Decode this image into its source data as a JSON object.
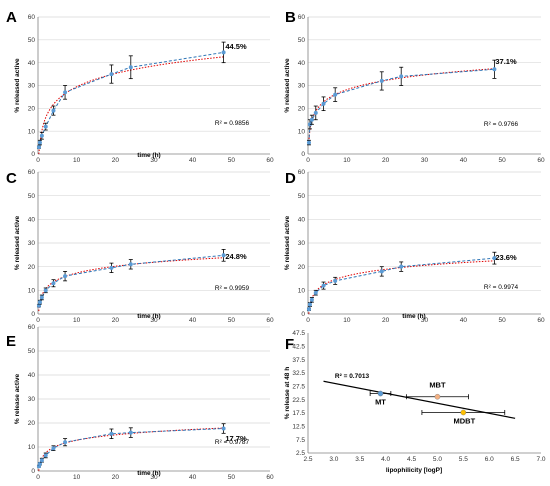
{
  "figure": {
    "panels": [
      {
        "letter": "A",
        "percent_label": "44.5%",
        "r2_label": "R² = 0.9856"
      },
      {
        "letter": "B",
        "percent_label": "37.1%",
        "r2_label": "R² = 0.9766"
      },
      {
        "letter": "C",
        "percent_label": "24.8%",
        "r2_label": "R² = 0.9959"
      },
      {
        "letter": "D",
        "percent_label": "23.6%",
        "r2_label": "R² = 0.9974"
      },
      {
        "letter": "E",
        "percent_label": "17.7%",
        "r2_label": "R² = 0.9787"
      },
      {
        "letter": "F",
        "r2_label": "R² = 0.7013"
      }
    ]
  },
  "colors": {
    "marker": "#5b9bd5",
    "series_line": "#2e75b6",
    "fit_line": "#e00000",
    "error_bar": "#000000",
    "grid": "#d9d9d9",
    "mt_marker": "#5b9bd5",
    "mbt_marker": "#f4b183",
    "mdbt_marker": "#ffc000"
  },
  "chart_data": [
    {
      "type": "scatter",
      "panel": "A",
      "xlabel": "time (h)",
      "ylabel": "% released active",
      "xlim": [
        0,
        60
      ],
      "ylim": [
        0,
        60
      ],
      "x_ticks": [
        0,
        10,
        20,
        30,
        40,
        50,
        60
      ],
      "y_ticks": [
        0,
        10,
        20,
        30,
        40,
        50,
        60
      ],
      "grid": true,
      "x": [
        0.25,
        0.5,
        1,
        2,
        4,
        7,
        19,
        24,
        48
      ],
      "y": [
        3,
        5,
        8,
        12,
        19,
        27,
        35,
        38,
        44.5
      ],
      "error": [
        0.5,
        1,
        1.5,
        1.5,
        2,
        3,
        4,
        5,
        4.5
      ],
      "annotation": "44.5%",
      "r_squared": "R² = 0.9856"
    },
    {
      "type": "scatter",
      "panel": "B",
      "xlabel": "",
      "ylabel": "% released active",
      "xlim": [
        0,
        60
      ],
      "ylim": [
        0,
        60
      ],
      "x_ticks": [
        0,
        10,
        20,
        30,
        40,
        50,
        60
      ],
      "y_ticks": [
        0,
        10,
        20,
        30,
        40,
        50,
        60
      ],
      "grid": true,
      "x": [
        0.25,
        0.5,
        1,
        2,
        4,
        7,
        19,
        24,
        48
      ],
      "y": [
        5,
        13,
        15,
        18,
        22,
        26,
        32,
        34,
        37.1
      ],
      "error": [
        1,
        2,
        2,
        3,
        3,
        3,
        4,
        4,
        4
      ],
      "annotation": "37.1%",
      "r_squared": "R² = 0.9766"
    },
    {
      "type": "scatter",
      "panel": "C",
      "xlabel": "time (h)",
      "ylabel": "% released active",
      "xlim": [
        0,
        60
      ],
      "ylim": [
        0,
        60
      ],
      "x_ticks": [
        0,
        10,
        20,
        30,
        40,
        50,
        60
      ],
      "y_ticks": [
        0,
        10,
        20,
        30,
        40,
        50,
        60
      ],
      "grid": true,
      "x": [
        0.25,
        0.5,
        1,
        2,
        4,
        7,
        19,
        24,
        48
      ],
      "y": [
        3.5,
        5,
        7,
        10,
        13,
        16,
        19.5,
        21,
        24.8
      ],
      "error": [
        0.5,
        0.8,
        1,
        1,
        1.5,
        2,
        2,
        2,
        2.5
      ],
      "annotation": "24.8%",
      "r_squared": "R² = 0.9959"
    },
    {
      "type": "scatter",
      "panel": "D",
      "xlabel": "time (h)",
      "ylabel": "% released active",
      "xlim": [
        0,
        60
      ],
      "ylim": [
        0,
        60
      ],
      "x_ticks": [
        0,
        10,
        20,
        30,
        40,
        50,
        60
      ],
      "y_ticks": [
        0,
        10,
        20,
        30,
        40,
        50,
        60
      ],
      "grid": true,
      "x": [
        0.25,
        0.5,
        1,
        2,
        4,
        7,
        19,
        24,
        48
      ],
      "y": [
        2,
        4,
        6,
        9,
        12,
        14,
        18,
        20,
        23.6
      ],
      "error": [
        0.5,
        0.8,
        1,
        1,
        1.5,
        1.5,
        2,
        2,
        2.5
      ],
      "annotation": "23.6%",
      "r_squared": "R² = 0.9974"
    },
    {
      "type": "scatter",
      "panel": "E",
      "xlabel": "time (h)",
      "ylabel": "% release active",
      "xlim": [
        0,
        60
      ],
      "ylim": [
        0,
        60
      ],
      "x_ticks": [
        0,
        10,
        20,
        30,
        40,
        50,
        60
      ],
      "y_ticks": [
        0,
        10,
        20,
        30,
        40,
        50,
        60
      ],
      "grid": true,
      "x": [
        0.25,
        0.5,
        1,
        2,
        4,
        7,
        19,
        24,
        48
      ],
      "y": [
        2,
        3,
        4.5,
        6.5,
        9.5,
        12,
        15.5,
        16,
        17.7
      ],
      "error": [
        0.4,
        0.5,
        0.8,
        1,
        1,
        1.5,
        2,
        2,
        2
      ],
      "annotation": "17.7%",
      "r_squared": "R² = 0.9787"
    },
    {
      "type": "scatter",
      "panel": "F",
      "xlabel": "lipophilicity [logP]",
      "ylabel": "% release at 48 h",
      "xlim": [
        2.5,
        7.0
      ],
      "ylim": [
        2.5,
        47.5
      ],
      "x_ticks": [
        "2.5",
        "3.0",
        "3.5",
        "4.0",
        "4.5",
        "5.0",
        "5.5",
        "6.0",
        "6.5",
        "7.0"
      ],
      "y_ticks": [
        "2.5",
        "7.5",
        "12.5",
        "17.5",
        "22.5",
        "27.5",
        "32.5",
        "37.5",
        "42.5",
        "47.5"
      ],
      "grid": false,
      "points": [
        {
          "label": "MT",
          "x": 3.9,
          "y": 24.8,
          "xerr": 0.2
        },
        {
          "label": "MBT",
          "x": 5.0,
          "y": 23.6,
          "xerr": 0.6
        },
        {
          "label": "MDBT",
          "x": 5.5,
          "y": 17.7,
          "xerr": 0.8
        }
      ],
      "trendline": {
        "x": [
          2.8,
          6.5
        ],
        "y": [
          29.4,
          15.5
        ]
      },
      "r_squared": "R² = 0.7013"
    }
  ]
}
